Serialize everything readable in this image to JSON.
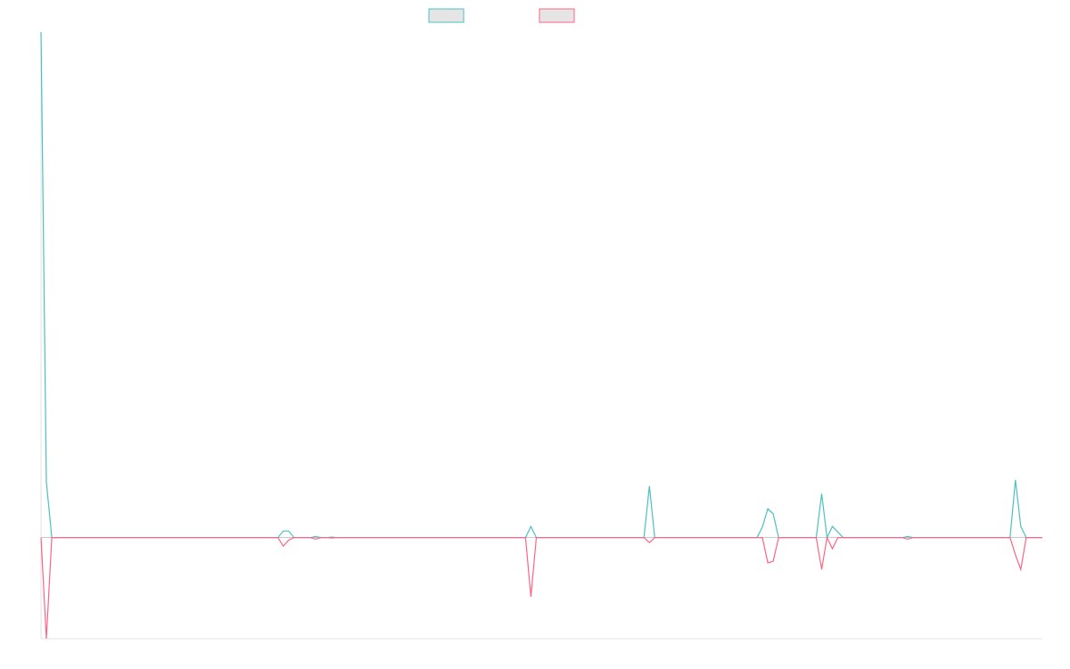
{
  "chart_data": {
    "type": "line",
    "title": "",
    "xlabel": "",
    "ylabel": "",
    "ylim": [
      -20,
      100
    ],
    "grid": false,
    "legend": "top",
    "series": [
      {
        "color": "#4bc0c0",
        "values": [
          100,
          11,
          0,
          0,
          0,
          0,
          0,
          0,
          0,
          0,
          0,
          0,
          0,
          0,
          0,
          0,
          0,
          0,
          0,
          0,
          0,
          0,
          0,
          0,
          0,
          0,
          0,
          0,
          0,
          0,
          0,
          0,
          0,
          0,
          0,
          0,
          0,
          0,
          0,
          0,
          0,
          0,
          0,
          0,
          0,
          1.3,
          1.3,
          0,
          0,
          0,
          0,
          0.2,
          0,
          0,
          0.1,
          0,
          0,
          0,
          0,
          0,
          0,
          0,
          0,
          0,
          0,
          0,
          0,
          0,
          0,
          0,
          0,
          0,
          0,
          0,
          0,
          0,
          0,
          0,
          0,
          0,
          0,
          0,
          0,
          0,
          0,
          0,
          0,
          0,
          0,
          0,
          0,
          2.2,
          0,
          0,
          0,
          0,
          0,
          0,
          0,
          0,
          0,
          0,
          0,
          0,
          0,
          0,
          0,
          0,
          0,
          0,
          0,
          0,
          0,
          10.2,
          0,
          0,
          0,
          0,
          0,
          0,
          0,
          0,
          0,
          0,
          0,
          0,
          0,
          0,
          0,
          0,
          0,
          0,
          0,
          0,
          2.1,
          5.7,
          4.7,
          0,
          0,
          0,
          0,
          0,
          0,
          0,
          0,
          8.7,
          0,
          2.2,
          1.1,
          0,
          0,
          0,
          0,
          0,
          0,
          0,
          0,
          0,
          0,
          0,
          0,
          0.2,
          0,
          0,
          0,
          0,
          0,
          0,
          0,
          0,
          0,
          0,
          0,
          0,
          0,
          0,
          0,
          0,
          0,
          0,
          0,
          11.4,
          2.2,
          0,
          0,
          0,
          0
        ]
      },
      {
        "color": "#ff6384",
        "values": [
          0,
          -20,
          0,
          0,
          0,
          0,
          0,
          0,
          0,
          0,
          0,
          0,
          0,
          0,
          0,
          0,
          0,
          0,
          0,
          0,
          0,
          0,
          0,
          0,
          0,
          0,
          0,
          0,
          0,
          0,
          0,
          0,
          0,
          0,
          0,
          0,
          0,
          0,
          0,
          0,
          0,
          0,
          0,
          0,
          0,
          -1.7,
          -0.5,
          0,
          0,
          0,
          0,
          -0.3,
          0,
          0,
          -0.1,
          0,
          0,
          0,
          0,
          0,
          0,
          0,
          0,
          0,
          0,
          0,
          0,
          0,
          0,
          0,
          0,
          0,
          0,
          0,
          0,
          0,
          0,
          0,
          0,
          0,
          0,
          0,
          0,
          0,
          0,
          0,
          0,
          0,
          0,
          0,
          0,
          -11.7,
          0,
          0,
          0,
          0,
          0,
          0,
          0,
          0,
          0,
          0,
          0,
          0,
          0,
          0,
          0,
          0,
          0,
          0,
          0,
          0,
          0,
          -1,
          0,
          0,
          0,
          0,
          0,
          0,
          0,
          0,
          0,
          0,
          0,
          0,
          0,
          0,
          0,
          0,
          0,
          0,
          0,
          0,
          0,
          -5,
          -4.7,
          0,
          0,
          0,
          0,
          0,
          0,
          0,
          0,
          -6.3,
          0,
          -2.2,
          0,
          0,
          0,
          0,
          0,
          0,
          0,
          0,
          0,
          0,
          0,
          0,
          0,
          -0.3,
          0,
          0,
          0,
          0,
          0,
          0,
          0,
          0,
          0,
          0,
          0,
          0,
          0,
          0,
          0,
          0,
          0,
          0,
          0,
          -3.4,
          -6.3,
          0,
          0,
          0,
          0
        ]
      }
    ]
  }
}
